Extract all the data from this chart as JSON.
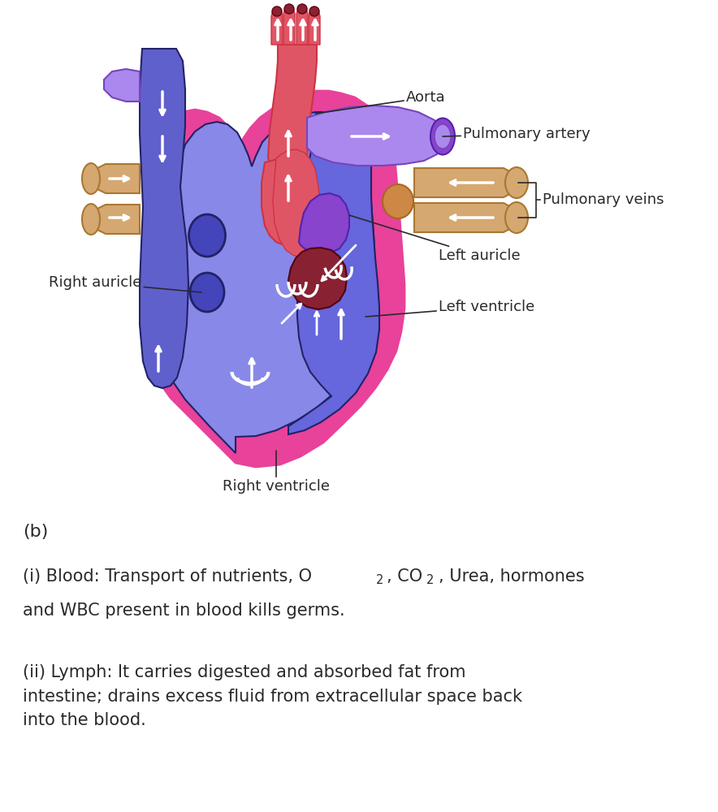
{
  "bg_color": "#ffffff",
  "label_color": "#2a2a2a",
  "font_size_label": 13,
  "font_size_text": 15,
  "colors": {
    "pink": "#E8429A",
    "blue_light": "#8888E8",
    "blue_med": "#6666DD",
    "blue_dark": "#5555CC",
    "blue_vena": "#6060CC",
    "purple_light": "#AA88EE",
    "purple_dark": "#8844CC",
    "red_aorta": "#E05565",
    "red_dark": "#882233",
    "tan": "#D4A870",
    "orange_tan": "#CC8844",
    "dark_outline": "#222266",
    "white": "#FFFFFF"
  },
  "labels": {
    "aorta": "Aorta",
    "pulmonary_artery": "Pulmonary artery",
    "pulmonary_veins": "Pulmonary veins",
    "right_auricle": "Right auricle",
    "left_auricle": "Left auricle",
    "left_ventricle": "Left ventricle",
    "right_ventricle": "Right ventricle"
  },
  "text_b": "(b)",
  "text_ii": "(ii) Lymph: It carries digested and absorbed fat from\nintestine; drains excess fluid from extracellular space back\ninto the blood."
}
